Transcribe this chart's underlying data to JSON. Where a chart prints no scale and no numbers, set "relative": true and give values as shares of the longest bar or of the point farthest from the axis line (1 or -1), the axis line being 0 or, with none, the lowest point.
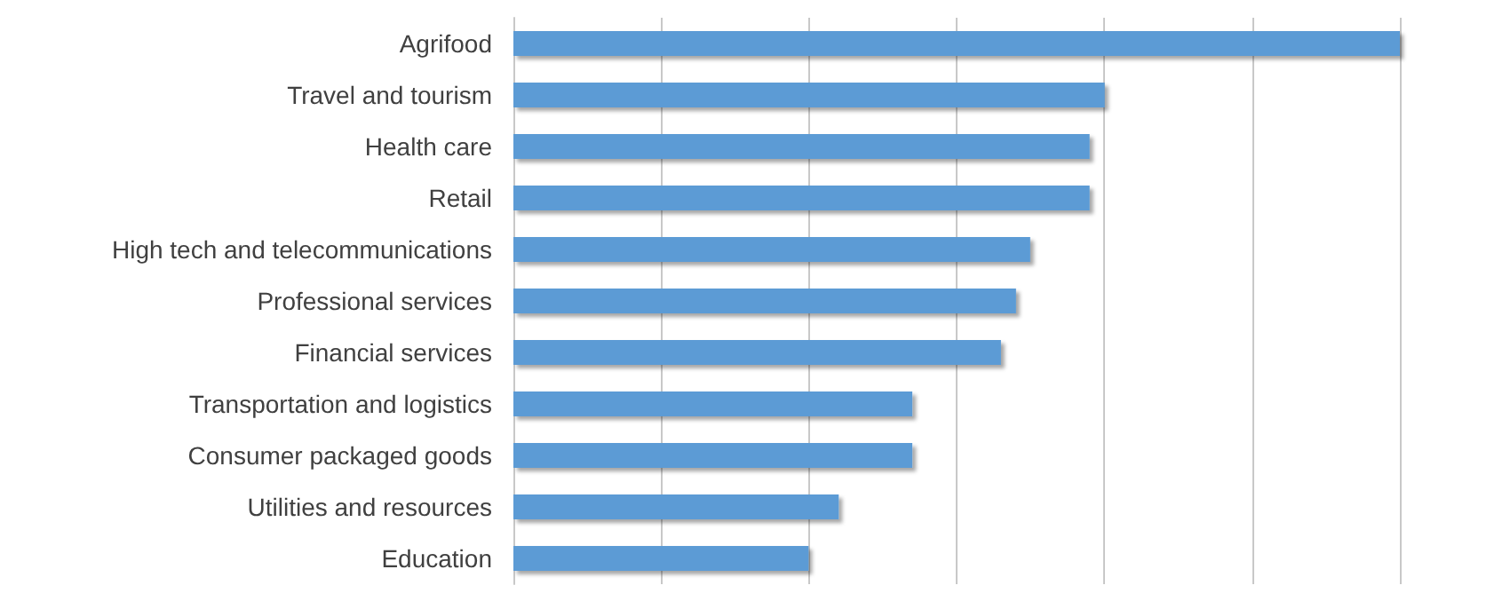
{
  "chart_data": {
    "type": "bar",
    "orientation": "horizontal",
    "relative": true,
    "grid": "x",
    "categories": [
      "Agrifood",
      "Travel and tourism",
      "Health care",
      "Retail",
      "High tech and telecommunications",
      "Professional services",
      "Financial services",
      "Transportation and logistics",
      "Consumer packaged goods",
      "Utilities and resources",
      "Education"
    ],
    "values": [
      1,
      0.667,
      0.65,
      0.65,
      0.583,
      0.567,
      0.55,
      0.45,
      0.45,
      0.367,
      0.333
    ],
    "color": "#5b9bd5"
  }
}
